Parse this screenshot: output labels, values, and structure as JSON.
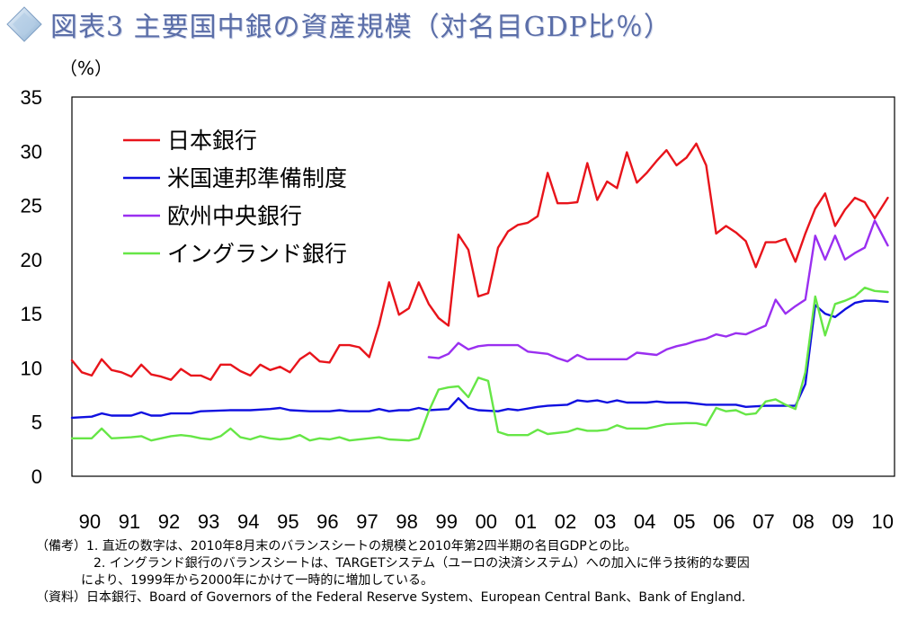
{
  "title": "図表3 主要国中銀の資産規模（対名目GDP比％）",
  "icon": "diamond-icon",
  "colors": {
    "title": "#5b6ea8",
    "boj": "#e8141b",
    "fed": "#1010e0",
    "ecb": "#9a2ff0",
    "boe": "#66e646"
  },
  "notes": {
    "line1": "（備考）1. 直近の数字は、2010年8月末のバランスシートの規模と2010年第2四半期の名目GDPとの比。",
    "line2": "2. イングランド銀行のバランスシートは、TARGETシステム（ユーロの決済システム）への加入に伴う技術的な要因",
    "line3": "により、1999年から2000年にかけて一時的に増加している。",
    "line4": "（資料）日本銀行、Board of Governors of the Federal Reserve System、European Central Bank、Bank of England."
  },
  "chart_data": {
    "type": "line",
    "ylabel": "（%）",
    "ylim": [
      0,
      35
    ],
    "yticks": [
      0,
      5,
      10,
      15,
      20,
      25,
      30,
      35
    ],
    "xlim": [
      1990,
      2010.75
    ],
    "x_tick_labels": [
      "90",
      "91",
      "92",
      "93",
      "94",
      "95",
      "96",
      "97",
      "98",
      "99",
      "00",
      "01",
      "02",
      "03",
      "04",
      "05",
      "06",
      "07",
      "08",
      "09",
      "10"
    ],
    "legend_position": "top-left",
    "series": [
      {
        "name": "日本銀行",
        "color": "#e8141b",
        "points": [
          [
            1990.0,
            10.7
          ],
          [
            1990.25,
            9.6
          ],
          [
            1990.5,
            9.3
          ],
          [
            1990.75,
            10.8
          ],
          [
            1991.0,
            9.8
          ],
          [
            1991.25,
            9.6
          ],
          [
            1991.5,
            9.2
          ],
          [
            1991.75,
            10.3
          ],
          [
            1992.0,
            9.4
          ],
          [
            1992.25,
            9.2
          ],
          [
            1992.5,
            8.9
          ],
          [
            1992.75,
            9.9
          ],
          [
            1993.0,
            9.3
          ],
          [
            1993.25,
            9.3
          ],
          [
            1993.5,
            8.9
          ],
          [
            1993.75,
            10.3
          ],
          [
            1994.0,
            10.3
          ],
          [
            1994.25,
            9.7
          ],
          [
            1994.5,
            9.3
          ],
          [
            1994.75,
            10.3
          ],
          [
            1995.0,
            9.8
          ],
          [
            1995.25,
            10.1
          ],
          [
            1995.5,
            9.6
          ],
          [
            1995.75,
            10.8
          ],
          [
            1996.0,
            11.4
          ],
          [
            1996.25,
            10.6
          ],
          [
            1996.5,
            10.5
          ],
          [
            1996.75,
            12.1
          ],
          [
            1997.0,
            12.1
          ],
          [
            1997.25,
            11.9
          ],
          [
            1997.5,
            11.0
          ],
          [
            1997.75,
            14.0
          ],
          [
            1998.0,
            17.9
          ],
          [
            1998.25,
            14.9
          ],
          [
            1998.5,
            15.5
          ],
          [
            1998.75,
            17.9
          ],
          [
            1999.0,
            15.9
          ],
          [
            1999.25,
            14.6
          ],
          [
            1999.5,
            13.9
          ],
          [
            1999.75,
            22.3
          ],
          [
            2000.0,
            20.9
          ],
          [
            2000.25,
            16.6
          ],
          [
            2000.5,
            16.9
          ],
          [
            2000.75,
            21.1
          ],
          [
            2001.0,
            22.6
          ],
          [
            2001.25,
            23.2
          ],
          [
            2001.5,
            23.4
          ],
          [
            2001.75,
            24.0
          ],
          [
            2002.0,
            28.0
          ],
          [
            2002.25,
            25.2
          ],
          [
            2002.5,
            25.2
          ],
          [
            2002.75,
            25.3
          ],
          [
            2003.0,
            28.9
          ],
          [
            2003.25,
            25.5
          ],
          [
            2003.5,
            27.2
          ],
          [
            2003.75,
            26.6
          ],
          [
            2004.0,
            29.9
          ],
          [
            2004.25,
            27.1
          ],
          [
            2004.5,
            28.0
          ],
          [
            2004.75,
            29.1
          ],
          [
            2005.0,
            30.1
          ],
          [
            2005.25,
            28.7
          ],
          [
            2005.5,
            29.4
          ],
          [
            2005.75,
            30.7
          ],
          [
            2006.0,
            28.7
          ],
          [
            2006.25,
            22.4
          ],
          [
            2006.5,
            23.1
          ],
          [
            2006.75,
            22.5
          ],
          [
            2007.0,
            21.7
          ],
          [
            2007.25,
            19.3
          ],
          [
            2007.5,
            21.6
          ],
          [
            2007.75,
            21.6
          ],
          [
            2008.0,
            21.9
          ],
          [
            2008.25,
            19.8
          ],
          [
            2008.5,
            22.4
          ],
          [
            2008.75,
            24.7
          ],
          [
            2009.0,
            26.1
          ],
          [
            2009.25,
            23.1
          ],
          [
            2009.5,
            24.6
          ],
          [
            2009.75,
            25.7
          ],
          [
            2010.0,
            25.3
          ],
          [
            2010.25,
            23.8
          ],
          [
            2010.58,
            25.7
          ]
        ]
      },
      {
        "name": "米国連邦準備制度",
        "color": "#1010e0",
        "points": [
          [
            1990.0,
            5.4
          ],
          [
            1990.5,
            5.5
          ],
          [
            1990.75,
            5.8
          ],
          [
            1991.0,
            5.6
          ],
          [
            1991.5,
            5.6
          ],
          [
            1991.75,
            5.9
          ],
          [
            1992.0,
            5.6
          ],
          [
            1992.25,
            5.6
          ],
          [
            1992.5,
            5.8
          ],
          [
            1993.0,
            5.8
          ],
          [
            1993.25,
            6.0
          ],
          [
            1994.0,
            6.1
          ],
          [
            1994.5,
            6.1
          ],
          [
            1995.0,
            6.2
          ],
          [
            1995.25,
            6.3
          ],
          [
            1995.5,
            6.1
          ],
          [
            1996.0,
            6.0
          ],
          [
            1996.5,
            6.0
          ],
          [
            1996.75,
            6.1
          ],
          [
            1997.0,
            6.0
          ],
          [
            1997.5,
            6.0
          ],
          [
            1997.75,
            6.2
          ],
          [
            1998.0,
            6.0
          ],
          [
            1998.25,
            6.1
          ],
          [
            1998.5,
            6.1
          ],
          [
            1998.75,
            6.3
          ],
          [
            1999.0,
            6.1
          ],
          [
            1999.5,
            6.2
          ],
          [
            1999.75,
            7.2
          ],
          [
            2000.0,
            6.3
          ],
          [
            2000.25,
            6.1
          ],
          [
            2000.75,
            6.0
          ],
          [
            2001.0,
            6.2
          ],
          [
            2001.25,
            6.1
          ],
          [
            2001.75,
            6.4
          ],
          [
            2002.0,
            6.5
          ],
          [
            2002.5,
            6.6
          ],
          [
            2002.75,
            7.0
          ],
          [
            2003.0,
            6.9
          ],
          [
            2003.25,
            7.0
          ],
          [
            2003.5,
            6.8
          ],
          [
            2003.75,
            7.0
          ],
          [
            2004.0,
            6.8
          ],
          [
            2004.5,
            6.8
          ],
          [
            2004.75,
            6.9
          ],
          [
            2005.0,
            6.8
          ],
          [
            2005.5,
            6.8
          ],
          [
            2005.75,
            6.7
          ],
          [
            2006.0,
            6.6
          ],
          [
            2006.5,
            6.6
          ],
          [
            2006.75,
            6.6
          ],
          [
            2007.0,
            6.4
          ],
          [
            2007.5,
            6.5
          ],
          [
            2008.0,
            6.5
          ],
          [
            2008.25,
            6.5
          ],
          [
            2008.5,
            8.5
          ],
          [
            2008.75,
            15.8
          ],
          [
            2009.0,
            15.0
          ],
          [
            2009.25,
            14.7
          ],
          [
            2009.5,
            15.4
          ],
          [
            2009.75,
            16.0
          ],
          [
            2010.0,
            16.2
          ],
          [
            2010.25,
            16.2
          ],
          [
            2010.58,
            16.1
          ]
        ]
      },
      {
        "name": "欧州中央銀行",
        "color": "#9a2ff0",
        "points": [
          [
            1999.0,
            11.0
          ],
          [
            1999.25,
            10.9
          ],
          [
            1999.5,
            11.3
          ],
          [
            1999.75,
            12.3
          ],
          [
            2000.0,
            11.7
          ],
          [
            2000.25,
            12.0
          ],
          [
            2000.5,
            12.1
          ],
          [
            2001.0,
            12.1
          ],
          [
            2001.25,
            12.1
          ],
          [
            2001.5,
            11.5
          ],
          [
            2002.0,
            11.3
          ],
          [
            2002.25,
            10.9
          ],
          [
            2002.5,
            10.6
          ],
          [
            2002.75,
            11.2
          ],
          [
            2003.0,
            10.8
          ],
          [
            2003.5,
            10.8
          ],
          [
            2004.0,
            10.8
          ],
          [
            2004.25,
            11.4
          ],
          [
            2004.75,
            11.2
          ],
          [
            2005.0,
            11.7
          ],
          [
            2005.25,
            12.0
          ],
          [
            2005.5,
            12.2
          ],
          [
            2005.75,
            12.5
          ],
          [
            2006.0,
            12.7
          ],
          [
            2006.25,
            13.1
          ],
          [
            2006.5,
            12.9
          ],
          [
            2006.75,
            13.2
          ],
          [
            2007.0,
            13.1
          ],
          [
            2007.25,
            13.5
          ],
          [
            2007.5,
            13.9
          ],
          [
            2007.75,
            16.3
          ],
          [
            2008.0,
            15.0
          ],
          [
            2008.25,
            15.7
          ],
          [
            2008.5,
            16.3
          ],
          [
            2008.75,
            22.2
          ],
          [
            2009.0,
            20.0
          ],
          [
            2009.25,
            22.2
          ],
          [
            2009.5,
            20.0
          ],
          [
            2009.75,
            20.6
          ],
          [
            2010.0,
            21.1
          ],
          [
            2010.25,
            23.6
          ],
          [
            2010.58,
            21.3
          ]
        ]
      },
      {
        "name": "イングランド銀行",
        "color": "#66e646",
        "points": [
          [
            1990.0,
            3.5
          ],
          [
            1990.5,
            3.5
          ],
          [
            1990.75,
            4.4
          ],
          [
            1991.0,
            3.5
          ],
          [
            1991.5,
            3.6
          ],
          [
            1991.75,
            3.7
          ],
          [
            1992.0,
            3.3
          ],
          [
            1992.25,
            3.5
          ],
          [
            1992.5,
            3.7
          ],
          [
            1992.75,
            3.8
          ],
          [
            1993.0,
            3.7
          ],
          [
            1993.25,
            3.5
          ],
          [
            1993.5,
            3.4
          ],
          [
            1993.75,
            3.7
          ],
          [
            1994.0,
            4.4
          ],
          [
            1994.25,
            3.6
          ],
          [
            1994.5,
            3.4
          ],
          [
            1994.75,
            3.7
          ],
          [
            1995.0,
            3.5
          ],
          [
            1995.25,
            3.4
          ],
          [
            1995.5,
            3.5
          ],
          [
            1995.75,
            3.8
          ],
          [
            1996.0,
            3.3
          ],
          [
            1996.25,
            3.5
          ],
          [
            1996.5,
            3.4
          ],
          [
            1996.75,
            3.6
          ],
          [
            1997.0,
            3.3
          ],
          [
            1997.5,
            3.5
          ],
          [
            1997.75,
            3.6
          ],
          [
            1998.0,
            3.4
          ],
          [
            1998.5,
            3.3
          ],
          [
            1998.75,
            3.5
          ],
          [
            1999.0,
            6.0
          ],
          [
            1999.25,
            8.0
          ],
          [
            1999.5,
            8.2
          ],
          [
            1999.75,
            8.3
          ],
          [
            2000.0,
            7.3
          ],
          [
            2000.25,
            9.1
          ],
          [
            2000.5,
            8.8
          ],
          [
            2000.75,
            4.1
          ],
          [
            2001.0,
            3.8
          ],
          [
            2001.5,
            3.8
          ],
          [
            2001.75,
            4.3
          ],
          [
            2002.0,
            3.9
          ],
          [
            2002.5,
            4.1
          ],
          [
            2002.75,
            4.4
          ],
          [
            2003.0,
            4.2
          ],
          [
            2003.25,
            4.2
          ],
          [
            2003.5,
            4.3
          ],
          [
            2003.75,
            4.7
          ],
          [
            2004.0,
            4.4
          ],
          [
            2004.5,
            4.4
          ],
          [
            2004.75,
            4.6
          ],
          [
            2005.0,
            4.8
          ],
          [
            2005.5,
            4.9
          ],
          [
            2005.75,
            4.9
          ],
          [
            2006.0,
            4.7
          ],
          [
            2006.25,
            6.3
          ],
          [
            2006.5,
            6.0
          ],
          [
            2006.75,
            6.1
          ],
          [
            2007.0,
            5.7
          ],
          [
            2007.25,
            5.8
          ],
          [
            2007.5,
            6.9
          ],
          [
            2007.75,
            7.1
          ],
          [
            2008.0,
            6.6
          ],
          [
            2008.25,
            6.2
          ],
          [
            2008.5,
            9.6
          ],
          [
            2008.75,
            16.6
          ],
          [
            2009.0,
            13.0
          ],
          [
            2009.25,
            15.9
          ],
          [
            2009.5,
            16.2
          ],
          [
            2009.75,
            16.6
          ],
          [
            2010.0,
            17.4
          ],
          [
            2010.25,
            17.1
          ],
          [
            2010.58,
            17.0
          ]
        ]
      }
    ]
  }
}
